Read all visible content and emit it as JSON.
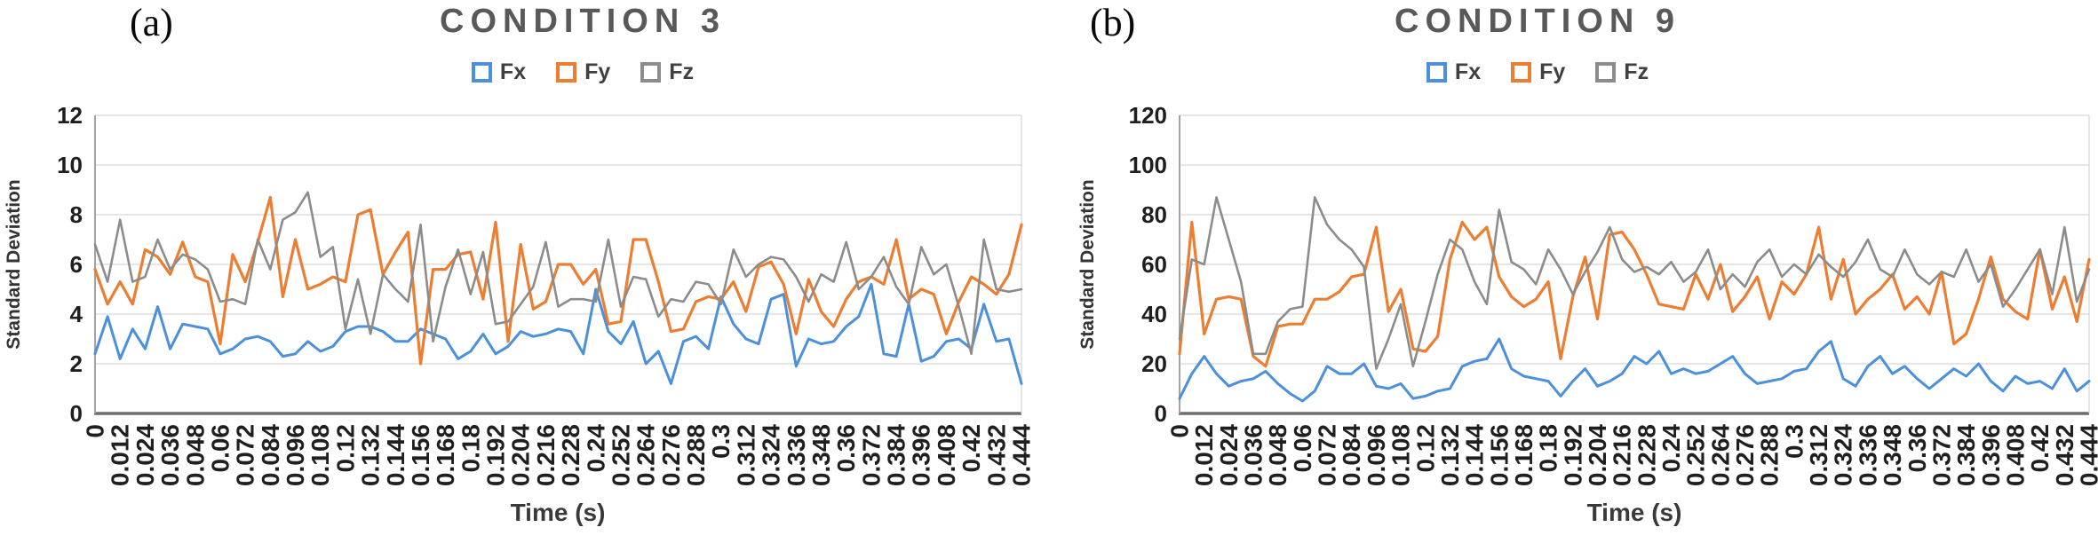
{
  "figure": {
    "panels": [
      {
        "panel_label": "(a)",
        "title": "CONDITION 3",
        "xlabel": "Time (s)",
        "ylabel": "Standard Deviation",
        "legend": [
          {
            "label": "Fx"
          },
          {
            "label": "Fy"
          },
          {
            "label": "Fz"
          }
        ]
      },
      {
        "panel_label": "(b)",
        "title": "CONDITION 9",
        "xlabel": "Time (s)",
        "ylabel": "Standard Deviation",
        "legend": [
          {
            "label": "Fx"
          },
          {
            "label": "Fy"
          },
          {
            "label": "Fz"
          }
        ]
      }
    ],
    "colors": {
      "fx_blue": "#4A90DC",
      "fy_orange": "#ED7D31",
      "fz_gray": "#8C8C8C",
      "title_gray": "#595959",
      "gridline": "#D6D6D6",
      "axis_dark": "#6E6E6E"
    }
  },
  "chart_data": [
    {
      "type": "line",
      "title": "CONDITION 3",
      "xlabel": "Time (s)",
      "ylabel": "Standard Deviation",
      "ylim": [
        0,
        12
      ],
      "ytick_step": 2,
      "grid": true,
      "legend_position": "top",
      "xtick_label_every": 2,
      "x": [
        0,
        0.006,
        0.012,
        0.018,
        0.024,
        0.03,
        0.036,
        0.042,
        0.048,
        0.054,
        0.06,
        0.066,
        0.072,
        0.078,
        0.084,
        0.09,
        0.096,
        0.102,
        0.108,
        0.114,
        0.12,
        0.126,
        0.132,
        0.138,
        0.144,
        0.15,
        0.156,
        0.162,
        0.168,
        0.174,
        0.18,
        0.186,
        0.192,
        0.198,
        0.204,
        0.21,
        0.216,
        0.222,
        0.228,
        0.234,
        0.24,
        0.246,
        0.252,
        0.258,
        0.264,
        0.27,
        0.276,
        0.282,
        0.288,
        0.294,
        0.3,
        0.306,
        0.312,
        0.318,
        0.324,
        0.33,
        0.336,
        0.342,
        0.348,
        0.354,
        0.36,
        0.366,
        0.372,
        0.378,
        0.384,
        0.39,
        0.396,
        0.402,
        0.408,
        0.414,
        0.42,
        0.426,
        0.432,
        0.438,
        0.444
      ],
      "series": [
        {
          "name": "Fx",
          "color": "#4A90DC",
          "values": [
            2.4,
            3.9,
            2.2,
            3.4,
            2.6,
            4.3,
            2.6,
            3.6,
            3.5,
            3.4,
            2.4,
            2.6,
            3.0,
            3.1,
            2.9,
            2.3,
            2.4,
            2.9,
            2.5,
            2.7,
            3.3,
            3.5,
            3.5,
            3.3,
            2.9,
            2.9,
            3.4,
            3.2,
            3.0,
            2.2,
            2.5,
            3.2,
            2.4,
            2.7,
            3.3,
            3.1,
            3.2,
            3.4,
            3.3,
            2.4,
            5.0,
            3.3,
            2.8,
            3.7,
            2.0,
            2.5,
            1.2,
            2.9,
            3.1,
            2.6,
            4.7,
            3.6,
            3.0,
            2.8,
            4.6,
            4.8,
            1.9,
            3.0,
            2.8,
            2.9,
            3.5,
            3.9,
            5.2,
            2.4,
            2.3,
            4.4,
            2.1,
            2.3,
            2.9,
            3.0,
            2.6,
            4.4,
            2.9,
            3.0,
            1.2
          ]
        },
        {
          "name": "Fy",
          "color": "#ED7D31",
          "values": [
            5.8,
            4.4,
            5.3,
            4.4,
            6.6,
            6.3,
            5.6,
            6.9,
            5.5,
            5.3,
            2.8,
            6.4,
            5.3,
            6.9,
            8.7,
            4.7,
            7.0,
            5.0,
            5.2,
            5.5,
            5.3,
            8.0,
            8.2,
            5.6,
            6.5,
            7.3,
            2.0,
            5.8,
            5.8,
            6.4,
            6.5,
            4.6,
            7.7,
            2.9,
            6.8,
            4.2,
            4.5,
            6.0,
            6.0,
            5.2,
            5.8,
            3.6,
            3.7,
            7.0,
            7.0,
            5.3,
            3.3,
            3.4,
            4.5,
            4.7,
            4.6,
            5.3,
            4.1,
            5.9,
            6.1,
            5.2,
            3.2,
            5.4,
            4.1,
            3.5,
            4.6,
            5.3,
            5.5,
            5.2,
            7.0,
            4.6,
            5.0,
            4.8,
            3.2,
            4.5,
            5.5,
            5.2,
            4.8,
            5.6,
            7.6
          ]
        },
        {
          "name": "Fz",
          "color": "#8C8C8C",
          "values": [
            6.8,
            5.3,
            7.8,
            5.3,
            5.5,
            7.0,
            5.8,
            6.4,
            6.2,
            5.8,
            4.5,
            4.6,
            4.4,
            7.0,
            5.8,
            7.8,
            8.1,
            8.9,
            6.3,
            6.7,
            3.4,
            5.4,
            3.2,
            5.6,
            5.0,
            4.5,
            7.6,
            2.9,
            5.1,
            6.6,
            4.8,
            6.5,
            3.6,
            3.7,
            4.4,
            5.1,
            6.9,
            4.3,
            4.6,
            4.6,
            4.5,
            7.0,
            4.3,
            5.5,
            5.4,
            3.9,
            4.6,
            4.5,
            5.3,
            5.2,
            4.4,
            6.6,
            5.5,
            6.0,
            6.3,
            6.2,
            5.5,
            4.5,
            5.6,
            5.3,
            6.9,
            5.0,
            5.5,
            6.3,
            5.1,
            4.4,
            6.7,
            5.6,
            6.0,
            4.3,
            2.4,
            7.0,
            5.0,
            4.9,
            5.0
          ]
        }
      ]
    },
    {
      "type": "line",
      "title": "CONDITION 9",
      "xlabel": "Time (s)",
      "ylabel": "Standard Deviation",
      "ylim": [
        0,
        120
      ],
      "ytick_step": 20,
      "grid": true,
      "legend_position": "top",
      "xtick_label_every": 2,
      "x": [
        0,
        0.006,
        0.012,
        0.018,
        0.024,
        0.03,
        0.036,
        0.042,
        0.048,
        0.054,
        0.06,
        0.066,
        0.072,
        0.078,
        0.084,
        0.09,
        0.096,
        0.102,
        0.108,
        0.114,
        0.12,
        0.126,
        0.132,
        0.138,
        0.144,
        0.15,
        0.156,
        0.162,
        0.168,
        0.174,
        0.18,
        0.186,
        0.192,
        0.198,
        0.204,
        0.21,
        0.216,
        0.222,
        0.228,
        0.234,
        0.24,
        0.246,
        0.252,
        0.258,
        0.264,
        0.27,
        0.276,
        0.282,
        0.288,
        0.294,
        0.3,
        0.306,
        0.312,
        0.318,
        0.324,
        0.33,
        0.336,
        0.342,
        0.348,
        0.354,
        0.36,
        0.366,
        0.372,
        0.378,
        0.384,
        0.39,
        0.396,
        0.402,
        0.408,
        0.414,
        0.42,
        0.426,
        0.432,
        0.438,
        0.444
      ],
      "series": [
        {
          "name": "Fx",
          "color": "#4A90DC",
          "values": [
            6,
            16,
            23,
            16,
            11,
            13,
            14,
            17,
            12,
            8,
            5,
            9,
            19,
            16,
            16,
            20,
            11,
            10,
            12,
            6,
            7,
            9,
            10,
            19,
            21,
            22,
            30,
            18,
            15,
            14,
            13,
            7,
            13,
            18,
            11,
            13,
            16,
            23,
            20,
            25,
            16,
            18,
            16,
            17,
            20,
            23,
            16,
            12,
            13,
            14,
            17,
            18,
            25,
            29,
            14,
            11,
            19,
            23,
            16,
            19,
            14,
            10,
            14,
            18,
            15,
            20,
            13,
            9,
            15,
            12,
            13,
            10,
            18,
            9,
            13
          ]
        },
        {
          "name": "Fy",
          "color": "#ED7D31",
          "values": [
            24,
            77,
            32,
            46,
            47,
            46,
            23,
            19,
            35,
            36,
            36,
            46,
            46,
            49,
            55,
            56,
            75,
            41,
            50,
            26,
            25,
            31,
            62,
            77,
            70,
            75,
            55,
            47,
            43,
            46,
            53,
            22,
            47,
            63,
            38,
            72,
            73,
            66,
            56,
            44,
            43,
            42,
            56,
            46,
            60,
            41,
            47,
            55,
            38,
            53,
            48,
            56,
            75,
            46,
            62,
            40,
            46,
            50,
            56,
            42,
            47,
            40,
            57,
            28,
            32,
            46,
            63,
            46,
            41,
            38,
            66,
            42,
            55,
            37,
            62
          ]
        },
        {
          "name": "Fz",
          "color": "#8C8C8C",
          "values": [
            30,
            62,
            60,
            87,
            70,
            53,
            24,
            24,
            37,
            42,
            43,
            87,
            76,
            70,
            66,
            59,
            18,
            30,
            44,
            19,
            37,
            56,
            70,
            66,
            53,
            44,
            82,
            61,
            58,
            52,
            66,
            58,
            48,
            57,
            65,
            75,
            62,
            57,
            59,
            56,
            61,
            53,
            57,
            66,
            50,
            56,
            51,
            61,
            66,
            55,
            60,
            56,
            64,
            59,
            55,
            61,
            70,
            58,
            55,
            66,
            56,
            52,
            57,
            55,
            66,
            53,
            60,
            43,
            50,
            58,
            66,
            48,
            75,
            45,
            58
          ]
        }
      ]
    }
  ]
}
